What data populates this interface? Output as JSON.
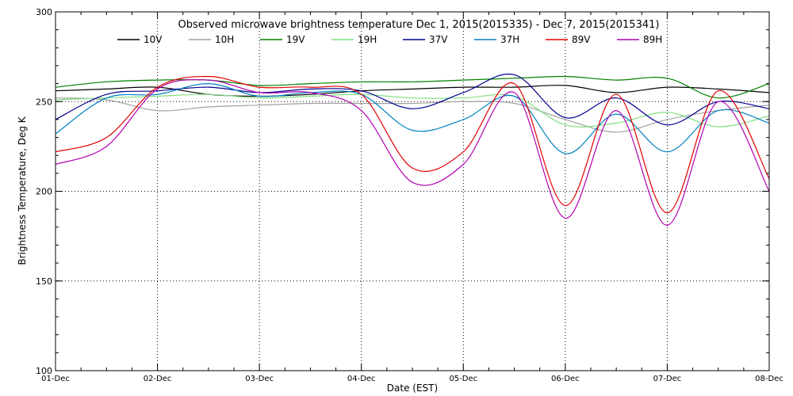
{
  "chart_data": {
    "type": "line",
    "title": "Observed microwave brightness temperature Dec  1, 2015(2015335) - Dec  7, 2015(2015341)",
    "xlabel": "Date (EST)",
    "ylabel": "Brightness Temperature, Deg K",
    "x_ticks": [
      "01-Dec",
      "02-Dec",
      "03-Dec",
      "04-Dec",
      "05-Dec",
      "06-Dec",
      "07-Dec",
      "08-Dec"
    ],
    "xlim": [
      0,
      7
    ],
    "ylim": [
      100,
      300
    ],
    "y_ticks": [
      100,
      150,
      200,
      250,
      300
    ],
    "grid": "dotted",
    "legend_position": "top",
    "series": [
      {
        "name": "10V",
        "color": "#000000",
        "x": [
          0,
          0.5,
          1,
          1.5,
          2,
          2.5,
          3,
          3.5,
          4,
          4.5,
          5,
          5.5,
          6,
          6.5,
          7
        ],
        "y": [
          256,
          257,
          258,
          254,
          253,
          254,
          256,
          257,
          258,
          258,
          259,
          255,
          258,
          257,
          255
        ]
      },
      {
        "name": "10H",
        "color": "#a0a0a0",
        "x": [
          0,
          0.5,
          1,
          1.5,
          2,
          2.5,
          3,
          3.5,
          4,
          4.5,
          5,
          5.5,
          6,
          6.5,
          7
        ],
        "y": [
          252,
          251,
          245,
          247,
          248,
          249,
          249,
          249,
          250,
          249,
          240,
          233,
          240,
          245,
          248
        ]
      },
      {
        "name": "19V",
        "color": "#008000",
        "x": [
          0,
          0.5,
          1,
          1.5,
          2,
          2.5,
          3,
          3.5,
          4,
          4.5,
          5,
          5.5,
          6,
          6.5,
          7
        ],
        "y": [
          258,
          261,
          262,
          262,
          259,
          260,
          261,
          261,
          262,
          263,
          264,
          262,
          263,
          252,
          260
        ]
      },
      {
        "name": "19H",
        "color": "#80e080",
        "x": [
          0,
          0.5,
          1,
          1.5,
          2,
          2.5,
          3,
          3.5,
          4,
          4.5,
          5,
          5.5,
          6,
          6.5,
          7
        ],
        "y": [
          251,
          252,
          253,
          254,
          252,
          253,
          254,
          252,
          252,
          253,
          237,
          238,
          244,
          236,
          242
        ]
      },
      {
        "name": "37V",
        "color": "#000090",
        "x": [
          0,
          0.5,
          1,
          1.5,
          2,
          2.5,
          3,
          3.5,
          4,
          4.5,
          5,
          5.5,
          6,
          6.5,
          7
        ],
        "y": [
          240,
          254,
          256,
          258,
          255,
          257,
          256,
          246,
          255,
          265,
          241,
          252,
          237,
          250,
          246
        ]
      },
      {
        "name": "37H",
        "color": "#0080c0",
        "x": [
          0,
          0.5,
          1,
          1.5,
          2,
          2.5,
          3,
          3.5,
          4,
          4.5,
          5,
          5.5,
          6,
          6.5,
          7
        ],
        "y": [
          232,
          252,
          254,
          260,
          253,
          255,
          254,
          234,
          240,
          253,
          221,
          243,
          222,
          245,
          238
        ]
      },
      {
        "name": "89V",
        "color": "#e00000",
        "x": [
          0,
          0.5,
          1,
          1.5,
          2,
          2.5,
          3,
          3.5,
          4,
          4.5,
          5,
          5.5,
          6,
          6.5,
          7
        ],
        "y": [
          222,
          230,
          258,
          264,
          258,
          258,
          254,
          213,
          222,
          260,
          192,
          254,
          188,
          256,
          207
        ]
      },
      {
        "name": "89H",
        "color": "#b000b0",
        "x": [
          0,
          0.5,
          1,
          1.5,
          2,
          2.5,
          3,
          3.5,
          4,
          4.5,
          5,
          5.5,
          6,
          6.5,
          7
        ],
        "y": [
          215,
          225,
          257,
          262,
          255,
          255,
          245,
          205,
          215,
          255,
          185,
          245,
          181,
          250,
          200
        ]
      }
    ]
  }
}
